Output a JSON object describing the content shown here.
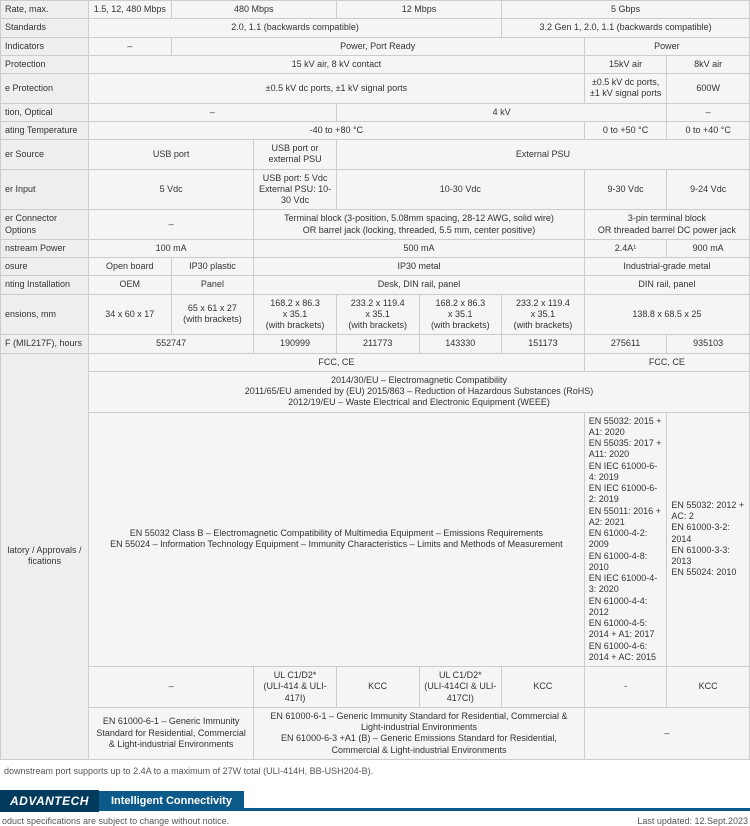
{
  "rows": {
    "rate": {
      "label": "Rate, max.",
      "c1": "1.5, 12, 480 Mbps",
      "c2": "480 Mbps",
      "c3": "12 Mbps",
      "c4": "5 Gbps"
    },
    "standards": {
      "label": "Standards",
      "left": "2.0, 1.1 (backwards compatible)",
      "right": "3.2 Gen 1, 2.0, 1.1 (backwards compatible)"
    },
    "indicators": {
      "label": "Indicators",
      "c1": "–",
      "c2": "Power, Port Ready",
      "c3": "Power"
    },
    "protection": {
      "label": "Protection",
      "c1": "15 kV air, 8 kV contact",
      "c2": "15kV air",
      "c3": "8kV air"
    },
    "eprot": {
      "label": "e Protection",
      "c1": "±0.5 kV dc ports, ±1 kV signal ports",
      "c2": "±0.5 kV dc ports, ±1 kV signal ports",
      "c3": "600W"
    },
    "optical": {
      "label": "tion, Optical",
      "c1": "–",
      "c2": "4 kV",
      "c3": "–"
    },
    "temp": {
      "label": "ating Temperature",
      "c1": "-40 to +80 °C",
      "c2": "0 to +50 °C",
      "c3": "0 to +40 °C"
    },
    "psource": {
      "label": "er Source",
      "c1": "USB port",
      "c2": "USB port or external PSU",
      "c3": "External PSU"
    },
    "pinput": {
      "label": "er Input",
      "c1": "5 Vdc",
      "c2": "USB port: 5 Vdc\nExternal PSU: 10-30 Vdc",
      "c3": "10-30 Vdc",
      "c4": "9-30 Vdc",
      "c5": "9-24 Vdc"
    },
    "pconn": {
      "label": "er Connector Options",
      "c1": "–",
      "c2": "Terminal block (3-position, 5.08mm spacing, 28-12 AWG, solid wire)\nOR barrel jack (locking, threaded, 5.5 mm, center positive)",
      "c3": "3-pin terminal block\nOR threaded barrel DC power jack"
    },
    "dpower": {
      "label": "nstream Power",
      "c1": "100 mA",
      "c2": "500 mA",
      "c3": "2.4A¹",
      "c4": "900 mA"
    },
    "enclosure": {
      "label": "osure",
      "c1": "Open board",
      "c2": "IP30 plastic",
      "c3": "IP30 metal",
      "c4": "Industrial-grade metal"
    },
    "mounting": {
      "label": "nting Installation",
      "c1": "OEM",
      "c2": "Panel",
      "c3": "Desk, DIN rail, panel",
      "c4": "DIN rail, panel"
    },
    "dims": {
      "label": "ensions, mm",
      "c1": "34 x 60 x 17",
      "c2": "65 x 61 x 27\n(with brackets)",
      "c3": "168.2 x 86.3\nx 35.1\n(with brackets)",
      "c4": "233.2 x 119.4\nx 35.1\n(with brackets)",
      "c5": "168.2 x 86.3\nx 35.1\n(with brackets)",
      "c6": "233.2 x 119.4\nx 35.1\n(with brackets)",
      "c7": "138.8 x 68.5 x 25"
    },
    "mtbf": {
      "label": "F (MIL217F), hours",
      "c1": "552747",
      "c2": "190999",
      "c3": "211773",
      "c4": "143330",
      "c5": "151173",
      "c6": "275611",
      "c7": "935103"
    },
    "fcc": {
      "c1": "FCC, CE",
      "c2": "FCC, CE"
    },
    "eu": "2014/30/EU – Electromagnetic Compatibility\n2011/65/EU amended by (EU) 2015/863 – Reduction of Hazardous Substances (RoHS)\n2012/19/EU – Waste Electrical and Electronic Equipment (WEEE)",
    "reg": {
      "label": "latory / Approvals / fications",
      "r2a": "EN 55032 Class B – Electromagnetic Compatibility of Multimedia Equipment – Emissions Requirements\nEN 55024 – Information Technology Equipment – Immunity Characteristics – Limits and Methods of Measurement",
      "r2b": "EN 55032: 2015 + A1: 2020\nEN 55035: 2017 + A11: 2020\nEN IEC 61000-6-4: 2019\nEN IEC 61000-6-2: 2019\nEN 55011: 2016 + A2: 2021\nEN 61000-4-2: 2009\nEN 61000-4-8: 2010\nEN IEC 61000-4-3: 2020\nEN 61000-4-4: 2012\nEN 61000-4-5: 2014 + A1: 2017\nEN 61000-4-6: 2014 + AC: 2015",
      "r2c": "EN 55032: 2012 + AC: 2\nEN 61000-3-2: 2014\nEN 61000-3-3: 2013\nEN 55024: 2010",
      "r3a": "–",
      "r3b": "UL C1/D2*\n(ULI-414 & ULI-417I)",
      "r3c": "KCC",
      "r3d": "UL C1/D2*\n(ULI-414CI & ULI-417CI)",
      "r3e": "KCC",
      "r3f": "-",
      "r3g": "KCC",
      "r4a": "EN 61000-6-1 – Generic Immunity Standard for Residential, Commercial & Light-industrial Environments",
      "r4b": "EN 61000-6-1 – Generic Immunity Standard for Residential, Commercial & Light-industrial Environments\nEN 61000-6-3 +A1 (B) – Generic Emissions Standard for Residential, Commercial & Light-industrial Environments",
      "r4c": "–"
    }
  },
  "footnote": "downstream port supports up to 2.4A to a maximum of 27W total (ULI-414H, BB-USH204-B).",
  "brand": {
    "logo": "ADVANTECH",
    "tag": "Intelligent Connectivity"
  },
  "subfoot": {
    "left": "oduct specifications are subject to change without notice.",
    "right": "Last updated: 12.Sept.2023"
  }
}
